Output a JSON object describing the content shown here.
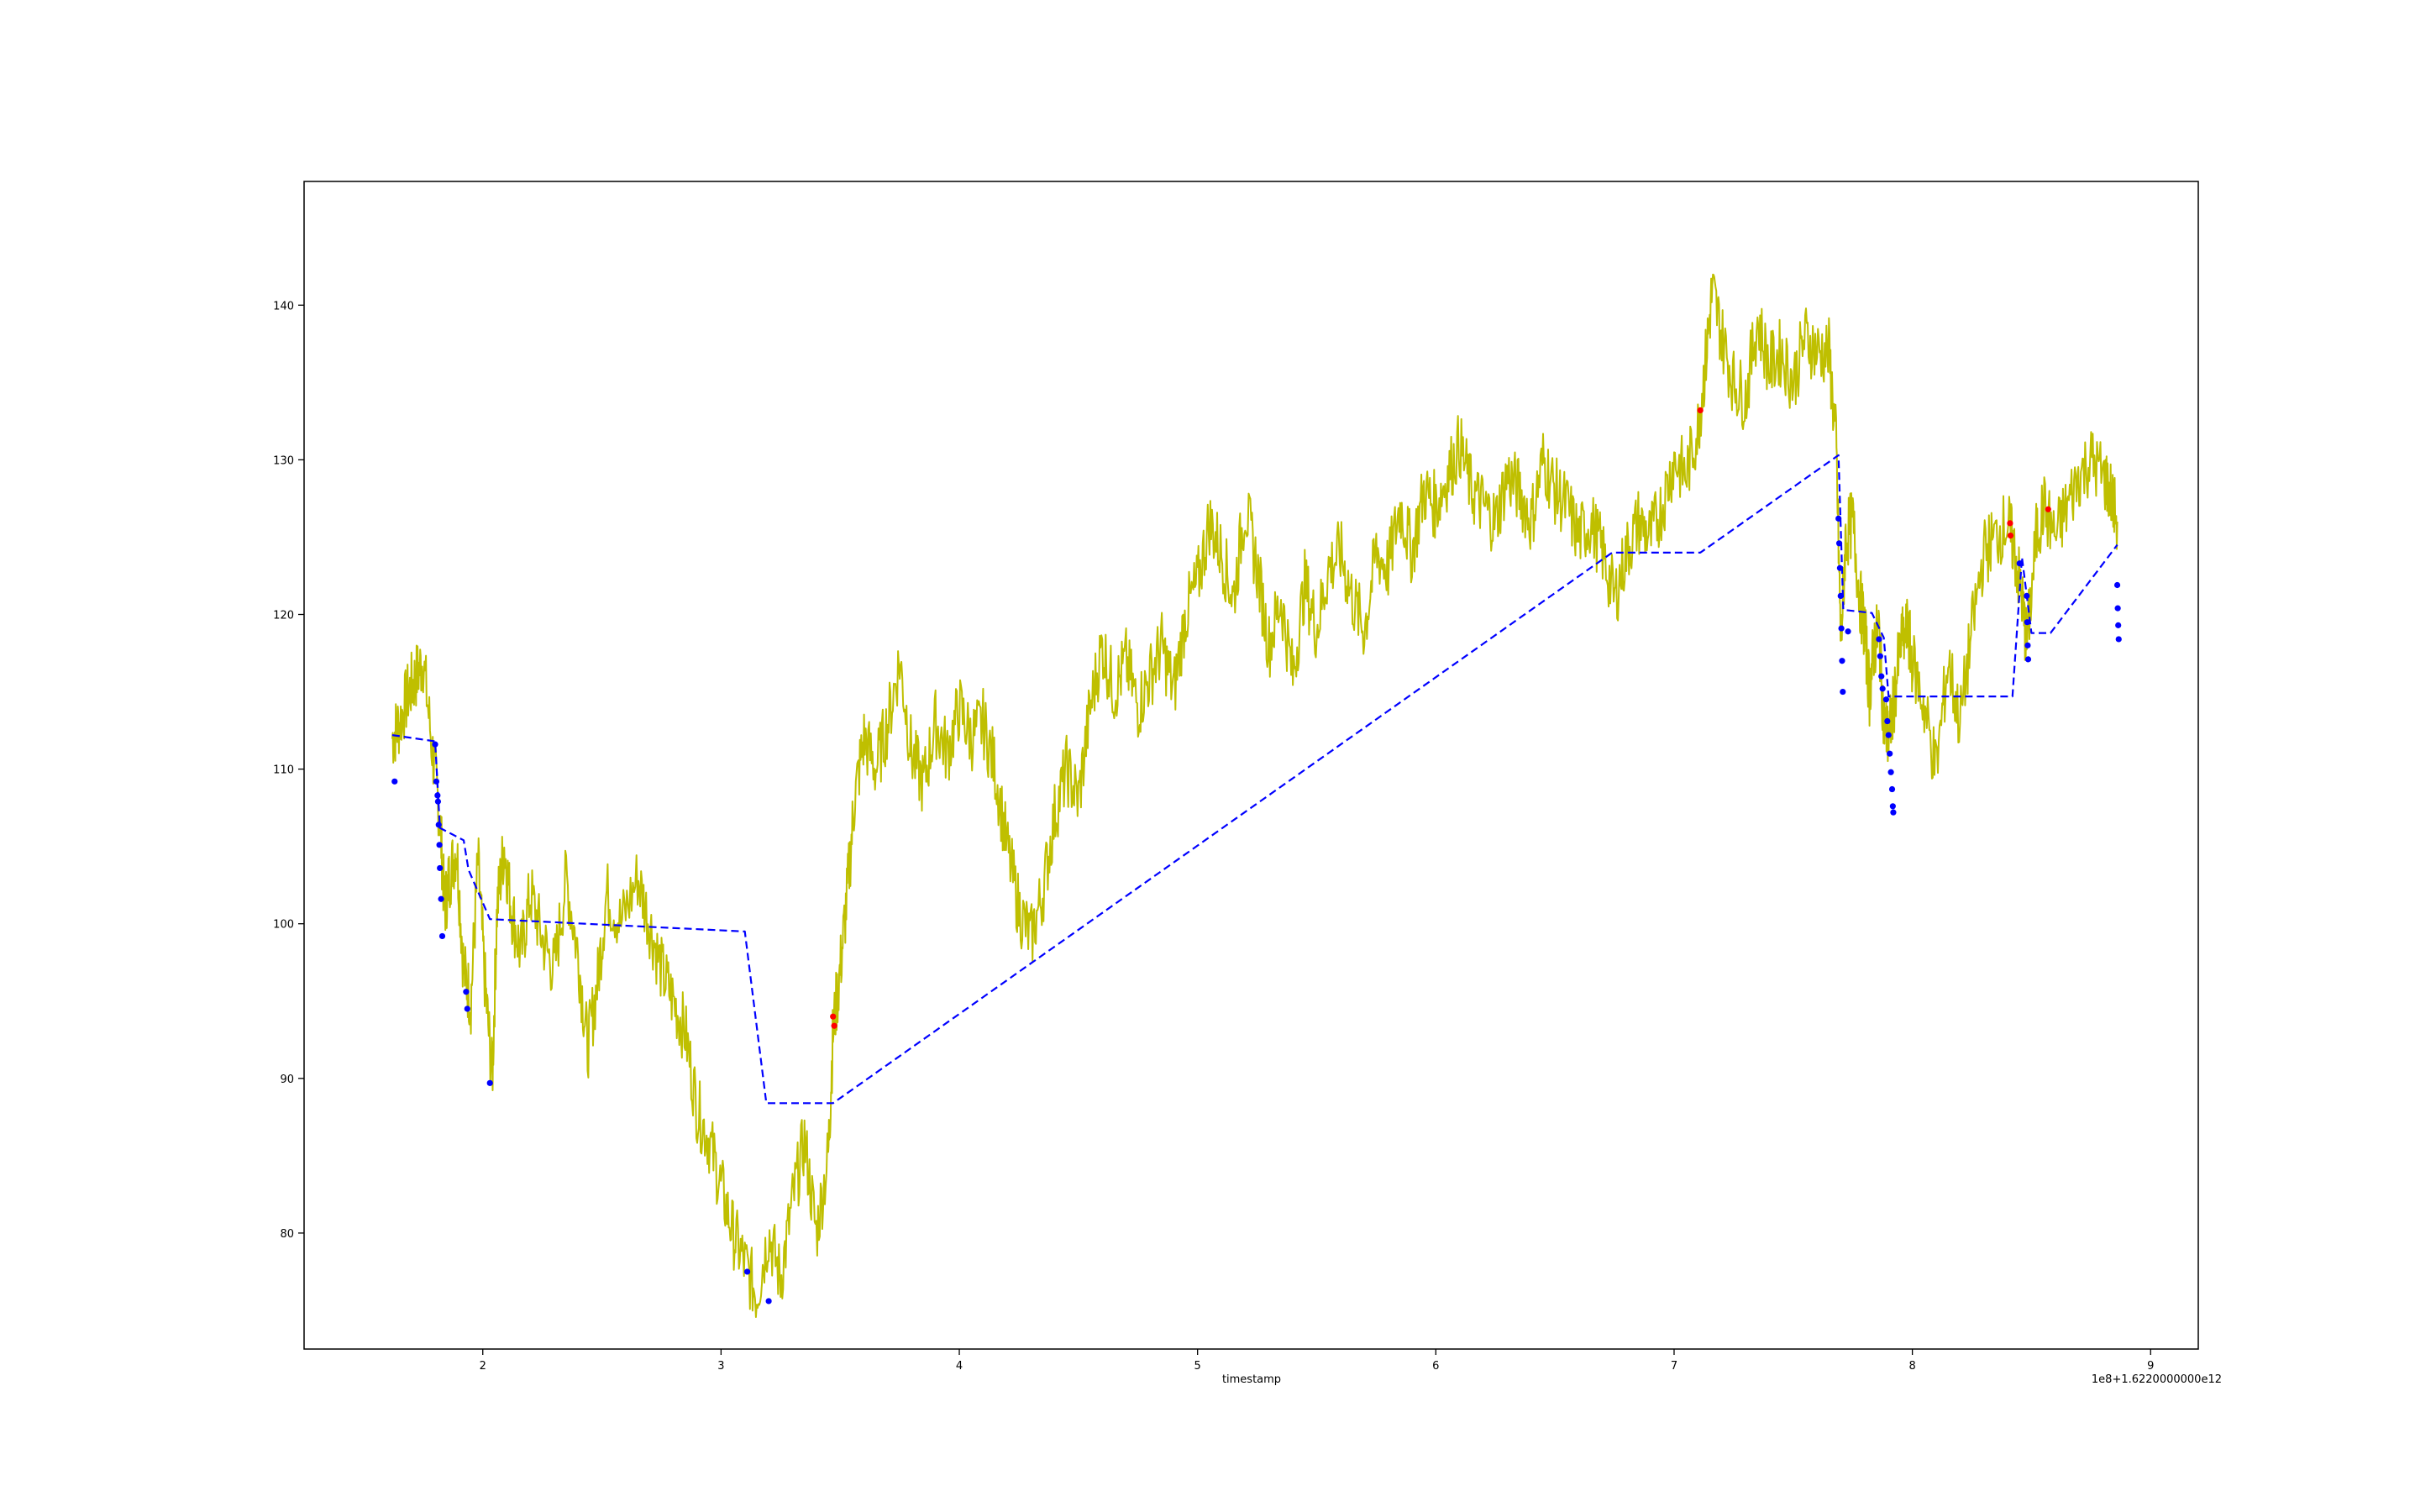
{
  "chart_data": {
    "type": "line",
    "title": "",
    "xlabel": "timestamp",
    "ylabel": "",
    "x_offset_text": "1e8+1.6220000000e12",
    "xlim": [
      1.25,
      9.2
    ],
    "ylim": [
      72.5,
      148
    ],
    "xticks": [
      2,
      3,
      4,
      5,
      6,
      7,
      8,
      9
    ],
    "yticks": [
      80,
      90,
      100,
      110,
      120,
      130,
      140
    ],
    "grid": false,
    "legend": "none",
    "colors": {
      "price": "#bfbf00",
      "trend": "#0000ff",
      "buy": "#0000ff",
      "sell": "#ff0000",
      "frame": "#000000"
    },
    "series": [
      {
        "role": "price",
        "style": "solid",
        "points": [
          [
            1.62,
            112
          ],
          [
            1.65,
            113
          ],
          [
            1.69,
            115
          ],
          [
            1.72,
            116
          ],
          [
            1.75,
            117
          ],
          [
            1.79,
            111
          ],
          [
            1.82,
            107
          ],
          [
            1.84,
            101
          ],
          [
            1.86,
            103
          ],
          [
            1.89,
            105
          ],
          [
            1.92,
            97
          ],
          [
            1.95,
            95
          ],
          [
            1.98,
            104
          ],
          [
            2.01,
            96
          ],
          [
            2.04,
            90
          ],
          [
            2.06,
            101
          ],
          [
            2.09,
            105
          ],
          [
            2.12,
            101
          ],
          [
            2.16,
            98
          ],
          [
            2.2,
            102
          ],
          [
            2.25,
            99
          ],
          [
            2.3,
            97
          ],
          [
            2.35,
            103
          ],
          [
            2.4,
            98
          ],
          [
            2.44,
            92
          ],
          [
            2.48,
            96
          ],
          [
            2.52,
            102
          ],
          [
            2.58,
            100
          ],
          [
            2.65,
            103
          ],
          [
            2.7,
            100
          ],
          [
            2.75,
            97
          ],
          [
            2.8,
            95
          ],
          [
            2.85,
            93
          ],
          [
            2.9,
            88
          ],
          [
            2.95,
            86
          ],
          [
            3.0,
            83
          ],
          [
            3.05,
            80
          ],
          [
            3.1,
            78
          ],
          [
            3.15,
            76
          ],
          [
            3.2,
            80
          ],
          [
            3.25,
            77
          ],
          [
            3.3,
            82
          ],
          [
            3.35,
            86
          ],
          [
            3.4,
            80
          ],
          [
            3.45,
            85
          ],
          [
            3.47,
            93
          ],
          [
            3.5,
            97
          ],
          [
            3.53,
            102
          ],
          [
            3.56,
            108
          ],
          [
            3.6,
            112
          ],
          [
            3.65,
            110
          ],
          [
            3.7,
            113
          ],
          [
            3.75,
            117
          ],
          [
            3.8,
            111
          ],
          [
            3.85,
            109
          ],
          [
            3.9,
            113
          ],
          [
            3.95,
            111
          ],
          [
            4.0,
            114
          ],
          [
            4.05,
            112
          ],
          [
            4.1,
            113
          ],
          [
            4.15,
            110
          ],
          [
            4.2,
            105
          ],
          [
            4.25,
            101
          ],
          [
            4.3,
            99
          ],
          [
            4.35,
            102
          ],
          [
            4.4,
            107
          ],
          [
            4.45,
            110
          ],
          [
            4.5,
            108
          ],
          [
            4.55,
            114
          ],
          [
            4.6,
            118
          ],
          [
            4.65,
            115
          ],
          [
            4.7,
            117
          ],
          [
            4.75,
            114
          ],
          [
            4.8,
            116
          ],
          [
            4.85,
            118
          ],
          [
            4.9,
            115
          ],
          [
            4.95,
            120
          ],
          [
            5.0,
            122
          ],
          [
            5.05,
            126
          ],
          [
            5.1,
            124
          ],
          [
            5.15,
            121
          ],
          [
            5.2,
            127
          ],
          [
            5.25,
            123
          ],
          [
            5.3,
            118
          ],
          [
            5.35,
            121
          ],
          [
            5.4,
            116
          ],
          [
            5.45,
            122
          ],
          [
            5.5,
            119
          ],
          [
            5.55,
            123
          ],
          [
            5.6,
            124
          ],
          [
            5.65,
            121
          ],
          [
            5.7,
            119
          ],
          [
            5.75,
            124
          ],
          [
            5.8,
            123
          ],
          [
            5.85,
            127
          ],
          [
            5.9,
            124
          ],
          [
            5.95,
            128
          ],
          [
            6.0,
            127
          ],
          [
            6.05,
            129
          ],
          [
            6.1,
            131
          ],
          [
            6.15,
            128
          ],
          [
            6.2,
            127
          ],
          [
            6.25,
            126
          ],
          [
            6.3,
            129
          ],
          [
            6.35,
            128
          ],
          [
            6.4,
            126
          ],
          [
            6.45,
            130
          ],
          [
            6.5,
            128
          ],
          [
            6.55,
            127
          ],
          [
            6.6,
            125
          ],
          [
            6.65,
            126
          ],
          [
            6.7,
            124
          ],
          [
            6.75,
            121
          ],
          [
            6.8,
            124
          ],
          [
            6.85,
            126
          ],
          [
            6.9,
            125
          ],
          [
            6.95,
            127
          ],
          [
            7.0,
            130
          ],
          [
            7.05,
            129
          ],
          [
            7.1,
            132
          ],
          [
            7.13,
            136
          ],
          [
            7.16,
            141
          ],
          [
            7.2,
            138
          ],
          [
            7.25,
            135
          ],
          [
            7.3,
            134
          ],
          [
            7.35,
            139
          ],
          [
            7.4,
            136
          ],
          [
            7.45,
            137
          ],
          [
            7.5,
            135
          ],
          [
            7.55,
            138
          ],
          [
            7.6,
            137
          ],
          [
            7.65,
            137
          ],
          [
            7.68,
            131
          ],
          [
            7.7,
            118
          ],
          [
            7.72,
            125
          ],
          [
            7.75,
            126
          ],
          [
            7.78,
            121
          ],
          [
            7.8,
            119
          ],
          [
            7.82,
            115
          ],
          [
            7.84,
            118
          ],
          [
            7.86,
            119
          ],
          [
            7.88,
            113
          ],
          [
            7.9,
            112
          ],
          [
            7.92,
            114
          ],
          [
            7.95,
            118
          ],
          [
            7.98,
            119
          ],
          [
            8.0,
            117
          ],
          [
            8.05,
            114
          ],
          [
            8.1,
            110
          ],
          [
            8.15,
            117
          ],
          [
            8.2,
            113
          ],
          [
            8.25,
            119
          ],
          [
            8.3,
            124
          ],
          [
            8.35,
            125
          ],
          [
            8.4,
            126
          ],
          [
            8.43,
            124
          ],
          [
            8.46,
            121
          ],
          [
            8.48,
            118
          ],
          [
            8.52,
            125
          ],
          [
            8.55,
            127
          ],
          [
            8.6,
            125
          ],
          [
            8.65,
            127
          ],
          [
            8.7,
            129
          ],
          [
            8.75,
            130
          ],
          [
            8.8,
            129
          ],
          [
            8.83,
            128
          ],
          [
            8.86,
            126
          ]
        ]
      },
      {
        "role": "trend",
        "style": "dashed",
        "points": [
          [
            1.62,
            112.2
          ],
          [
            1.8,
            111.8
          ],
          [
            1.82,
            106.2
          ],
          [
            1.92,
            105.4
          ],
          [
            1.94,
            103.5
          ],
          [
            2.03,
            100.3
          ],
          [
            3.1,
            99.5
          ],
          [
            3.19,
            88.4
          ],
          [
            3.47,
            88.4
          ],
          [
            6.74,
            124.0
          ],
          [
            7.11,
            124.0
          ],
          [
            7.69,
            130.3
          ],
          [
            7.71,
            120.3
          ],
          [
            7.83,
            120.1
          ],
          [
            7.88,
            118.5
          ],
          [
            7.9,
            114.7
          ],
          [
            8.42,
            114.7
          ],
          [
            8.46,
            123.7
          ],
          [
            8.5,
            118.8
          ],
          [
            8.58,
            118.8
          ],
          [
            8.86,
            124.5
          ]
        ]
      }
    ],
    "markers": {
      "buy_points": [
        [
          1.63,
          109.2
        ],
        [
          1.8,
          111.6
        ],
        [
          1.805,
          109.2
        ],
        [
          1.81,
          108.3
        ],
        [
          1.812,
          107.9
        ],
        [
          1.815,
          106.4
        ],
        [
          1.818,
          105.1
        ],
        [
          1.82,
          103.6
        ],
        [
          1.825,
          101.6
        ],
        [
          1.83,
          99.2
        ],
        [
          1.93,
          95.6
        ],
        [
          1.935,
          94.5
        ],
        [
          2.03,
          89.7
        ],
        [
          3.11,
          77.5
        ],
        [
          3.2,
          75.6
        ],
        [
          7.69,
          126.2
        ],
        [
          7.693,
          124.6
        ],
        [
          7.696,
          123.0
        ],
        [
          7.699,
          121.2
        ],
        [
          7.702,
          119.1
        ],
        [
          7.705,
          117.0
        ],
        [
          7.708,
          115.0
        ],
        [
          7.73,
          118.9
        ],
        [
          7.86,
          118.4
        ],
        [
          7.865,
          117.3
        ],
        [
          7.87,
          116.0
        ],
        [
          7.875,
          115.2
        ],
        [
          7.89,
          114.5
        ],
        [
          7.895,
          113.1
        ],
        [
          7.9,
          112.2
        ],
        [
          7.905,
          111.0
        ],
        [
          7.91,
          109.8
        ],
        [
          7.915,
          108.7
        ],
        [
          7.918,
          107.6
        ],
        [
          7.92,
          107.2
        ],
        [
          8.45,
          123.3
        ],
        [
          8.48,
          121.2
        ],
        [
          8.482,
          119.5
        ],
        [
          8.484,
          118.0
        ],
        [
          8.486,
          117.1
        ],
        [
          8.86,
          121.9
        ],
        [
          8.862,
          120.4
        ],
        [
          8.864,
          119.3
        ],
        [
          8.866,
          118.4
        ]
      ],
      "sell_points": [
        [
          3.47,
          94.0
        ],
        [
          3.475,
          93.4
        ],
        [
          7.11,
          133.2
        ],
        [
          8.41,
          125.9
        ],
        [
          8.412,
          125.1
        ],
        [
          8.57,
          126.8
        ]
      ]
    }
  }
}
